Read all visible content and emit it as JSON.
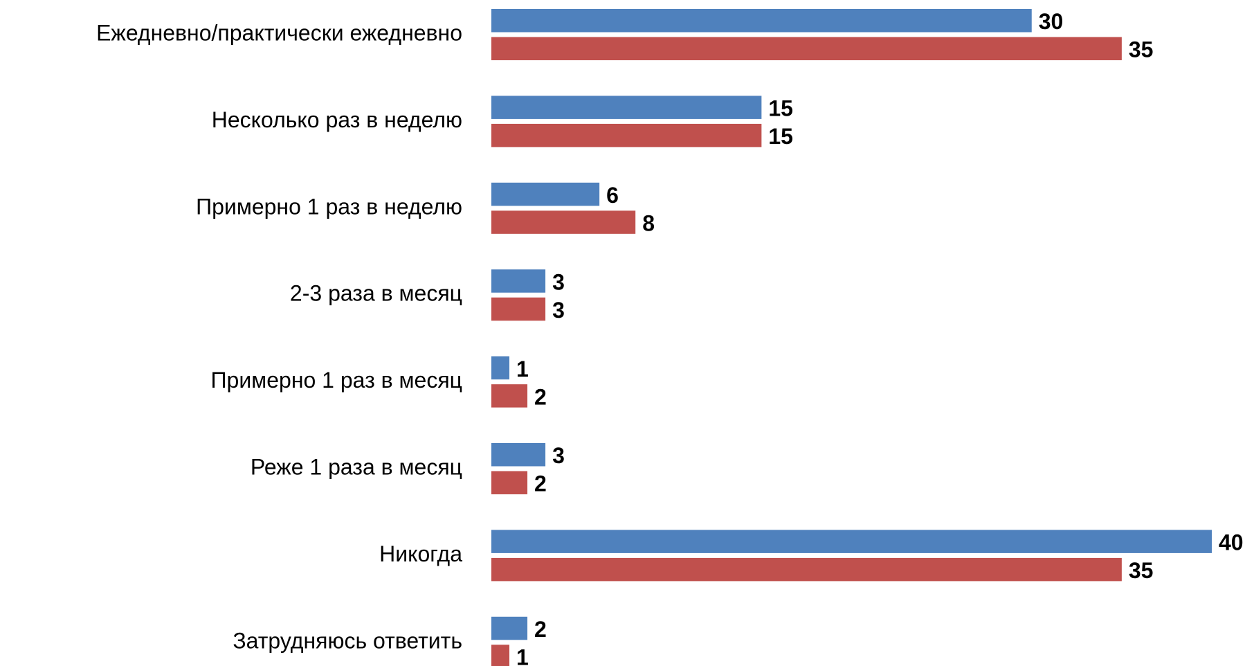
{
  "chart_data": {
    "type": "bar",
    "orientation": "horizontal",
    "categories": [
      "Ежедневно/практически ежедневно",
      "Несколько раз в неделю",
      "Примерно 1 раз в неделю",
      "2-3 раза в месяц",
      "Примерно 1 раз в месяц",
      "Реже 1 раза в месяц",
      "Никогда",
      "Затрудняюсь ответить"
    ],
    "series": [
      {
        "color": "#4f81bd",
        "values": [
          30,
          15,
          6,
          3,
          1,
          3,
          40,
          2
        ]
      },
      {
        "color": "#c0504d",
        "values": [
          35,
          15,
          8,
          3,
          2,
          2,
          35,
          1
        ]
      }
    ]
  }
}
